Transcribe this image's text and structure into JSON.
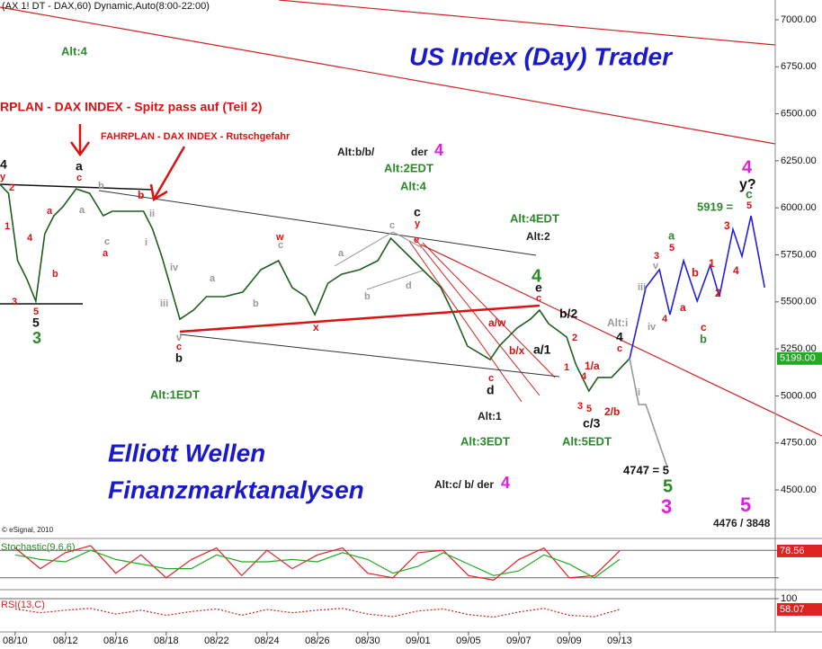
{
  "chart_data": [
    {
      "type": "line",
      "title": "(AX 1! DT - DAX,60) Dynamic,Auto(8:00-22:00)",
      "xlim": [
        -0.3,
        15.09
      ],
      "xticks": [
        {
          "value": 0,
          "label": "08/10"
        },
        {
          "value": 1,
          "label": "08/12"
        },
        {
          "value": 2,
          "label": "08/16"
        },
        {
          "value": 3,
          "label": "08/18"
        },
        {
          "value": 4,
          "label": "08/22"
        },
        {
          "value": 5,
          "label": "08/24"
        },
        {
          "value": 6,
          "label": "08/26"
        },
        {
          "value": 7,
          "label": "08/30"
        },
        {
          "value": 8,
          "label": "09/01"
        },
        {
          "value": 9,
          "label": "09/05"
        },
        {
          "value": 10,
          "label": "09/07"
        },
        {
          "value": 11,
          "label": "09/09"
        },
        {
          "value": 12,
          "label": "09/13"
        }
      ],
      "ylim": [
        4247,
        7105
      ],
      "yticks": [
        {
          "value": 4500,
          "label": "4500.00"
        },
        {
          "value": 4750,
          "label": "4750.00"
        },
        {
          "value": 5000,
          "label": "5000.00"
        },
        {
          "value": 5250,
          "label": "5250.00"
        },
        {
          "value": 5500,
          "label": "5500.00"
        },
        {
          "value": 5750,
          "label": "5750.00"
        },
        {
          "value": 6000,
          "label": "6000.00"
        },
        {
          "value": 6250,
          "label": "6250.00"
        },
        {
          "value": 6500,
          "label": "6500.00"
        },
        {
          "value": 6750,
          "label": "6750.00"
        },
        {
          "value": 7000,
          "label": "7000.00"
        }
      ],
      "tick_labels": true,
      "grid": false,
      "series": [
        {
          "color": "#1e5e1e",
          "line_style": "solid",
          "x": [
            -0.3,
            -0.13,
            0.05,
            0.23,
            0.41,
            0.59,
            0.77,
            0.95,
            1.21,
            1.48,
            1.75,
            1.93,
            2.2,
            2.55,
            2.73,
            2.91,
            3.09,
            3.27,
            3.54,
            3.8,
            4.16,
            4.52,
            4.88,
            5.23,
            5.5,
            5.77,
            5.95,
            6.21,
            6.48,
            6.84,
            7.2,
            7.46,
            7.73,
            8.09,
            8.45,
            8.71,
            8.98,
            9.43,
            9.61,
            9.96,
            10.23,
            10.41,
            10.59,
            10.95,
            11.13,
            11.39,
            11.57,
            11.84,
            12.2
          ],
          "values": [
            6125,
            6077,
            5719,
            5623,
            5504,
            5862,
            5958,
            6006,
            6101,
            6077,
            5958,
            5982,
            5982,
            5982,
            5886,
            5743,
            5576,
            5408,
            5456,
            5528,
            5528,
            5552,
            5671,
            5719,
            5576,
            5528,
            5432,
            5599,
            5647,
            5671,
            5719,
            5838,
            5767,
            5671,
            5576,
            5432,
            5265,
            5193,
            5265,
            5360,
            5408,
            5456,
            5384,
            5313,
            5169,
            5026,
            5098,
            5098,
            5199
          ]
        },
        {
          "color": "#2020e0",
          "line_style": "solid",
          "x": [
            12.2,
            12.52,
            12.79,
            13.0,
            13.27,
            13.54,
            13.8,
            13.98,
            14.25,
            14.43,
            14.61,
            14.88
          ],
          "values": [
            5199,
            5576,
            5671,
            5432,
            5719,
            5504,
            5695,
            5528,
            5886,
            5743,
            5958,
            5576
          ]
        },
        {
          "color": "#999999",
          "line_style": "solid",
          "x": [
            12.2,
            12.38,
            12.52,
            12.95
          ],
          "values": [
            5199,
            4954,
            4954,
            4620
          ]
        }
      ],
      "last_value": {
        "value": 5199,
        "label": "5199.00",
        "color": "#22aa22"
      }
    },
    {
      "type": "line",
      "title": "Stochastic(9,6,6)",
      "title_color": "#2a8a2a",
      "ylim": [
        0,
        100
      ],
      "yticks": [
        20,
        80
      ],
      "tick_labels": false,
      "grid": true,
      "series": [
        {
          "color": "#dd2222",
          "line_style": "solid",
          "x": [
            0,
            0.5,
            1,
            1.5,
            2,
            2.5,
            3,
            3.5,
            4,
            4.5,
            5,
            5.5,
            6,
            6.5,
            7,
            7.5,
            8,
            8.5,
            9,
            9.5,
            10,
            10.5,
            11,
            11.5,
            12
          ],
          "values": [
            85,
            40,
            75,
            90,
            30,
            70,
            20,
            60,
            85,
            25,
            80,
            40,
            70,
            85,
            30,
            20,
            75,
            80,
            25,
            15,
            60,
            85,
            20,
            25,
            78.56
          ]
        },
        {
          "color": "#22aa22",
          "line_style": "solid",
          "x": [
            0,
            0.5,
            1,
            1.5,
            2,
            2.5,
            3,
            3.5,
            4,
            4.5,
            5,
            5.5,
            6,
            6.5,
            7,
            7.5,
            8,
            8.5,
            9,
            9.5,
            10,
            10.5,
            11,
            11.5,
            12
          ],
          "values": [
            70,
            60,
            55,
            80,
            60,
            50,
            40,
            40,
            70,
            55,
            55,
            60,
            55,
            75,
            60,
            30,
            45,
            75,
            50,
            25,
            35,
            70,
            50,
            20,
            60
          ]
        }
      ],
      "last_value": {
        "value": 78.56,
        "label": "78.56",
        "color": "#dd2222"
      }
    },
    {
      "type": "line",
      "title": "RSI(13,C)",
      "title_color": "#dd2222",
      "ylim": [
        0,
        100
      ],
      "yticks": [
        100
      ],
      "tick_labels": true,
      "grid": true,
      "series": [
        {
          "color": "#cc2222",
          "line_style": "dotted",
          "x": [
            0,
            0.5,
            1,
            1.5,
            2,
            2.5,
            3,
            3.5,
            4,
            4.5,
            5,
            5.5,
            6,
            6.5,
            7,
            7.5,
            8,
            8.5,
            9,
            9.5,
            10,
            10.5,
            11,
            11.5,
            12
          ],
          "values": [
            60,
            45,
            55,
            62,
            40,
            55,
            35,
            50,
            60,
            35,
            58,
            45,
            55,
            62,
            40,
            30,
            52,
            60,
            38,
            28,
            48,
            62,
            35,
            30,
            58.07
          ]
        }
      ],
      "last_value": {
        "value": 58.07,
        "label": "58.07",
        "color": "#dd2222"
      }
    }
  ],
  "annotations": [
    {
      "text": "Alt:4",
      "color": "#2a8a2a"
    },
    {
      "text": "US Index (Day) Trader",
      "color": "#1a1acc"
    },
    {
      "text": "RPLAN - DAX INDEX - Spitz pass auf (Teil 2)",
      "color": "#dd1111"
    },
    {
      "text": "FAHRPLAN - DAX INDEX - Rutschgefahr",
      "color": "#dd1111"
    },
    {
      "text": "Alt:b/b/",
      "color": "#222222"
    },
    {
      "text": "der",
      "color": "#222222"
    },
    {
      "text": "4",
      "color": "#e020e0"
    },
    {
      "text": "Alt:2EDT",
      "color": "#2a8a2a"
    },
    {
      "text": "Alt:4",
      "color": "#2a8a2a"
    },
    {
      "text": "c",
      "color": "#111111"
    },
    {
      "text": "y",
      "color": "#dd1111"
    },
    {
      "text": "Alt:4EDT",
      "color": "#2a8a2a"
    },
    {
      "text": "Alt:2",
      "color": "#222222"
    },
    {
      "text": "4",
      "color": "#2a8a2a"
    },
    {
      "text": "e",
      "color": "#111111"
    },
    {
      "text": "c",
      "color": "#dd1111"
    },
    {
      "text": "b/2",
      "color": "#111111"
    },
    {
      "text": "a/1",
      "color": "#111111"
    },
    {
      "text": "Alt:i",
      "color": "#999999"
    },
    {
      "text": "4",
      "color": "#111111"
    },
    {
      "text": "c",
      "color": "#dd1111"
    },
    {
      "text": "1/a",
      "color": "#dd1111"
    },
    {
      "text": "2/b",
      "color": "#dd1111"
    },
    {
      "text": "c/3",
      "color": "#111111"
    },
    {
      "text": "Alt:1",
      "color": "#222222"
    },
    {
      "text": "Alt:3EDT",
      "color": "#2a8a2a"
    },
    {
      "text": "Alt:5EDT",
      "color": "#2a8a2a"
    },
    {
      "text": "d",
      "color": "#111111"
    },
    {
      "text": "c",
      "color": "#dd1111"
    },
    {
      "text": "a/w",
      "color": "#dd1111"
    },
    {
      "text": "b/x",
      "color": "#dd1111"
    },
    {
      "text": "Alt:1EDT",
      "color": "#2a8a2a"
    },
    {
      "text": "Elliott Wellen",
      "color": "#1a1acc"
    },
    {
      "text": "Finanzmarktanalysen",
      "color": "#1a1acc"
    },
    {
      "text": "Alt:c/ b/ der",
      "color": "#222222"
    },
    {
      "text": "4",
      "color": "#e020e0"
    },
    {
      "text": "4747 = 5",
      "color": "#111111"
    },
    {
      "text": "5",
      "color": "#2a8a2a"
    },
    {
      "text": "3",
      "color": "#e020e0"
    },
    {
      "text": "5",
      "color": "#e020e0"
    },
    {
      "text": "4476 / 3848",
      "color": "#222222"
    },
    {
      "text": "5919 =",
      "color": "#2a8a2a"
    },
    {
      "text": "4",
      "color": "#e020e0"
    },
    {
      "text": "y?",
      "color": "#111111"
    },
    {
      "text": "c",
      "color": "#2a8a2a"
    },
    {
      "text": "5",
      "color": "#dd1111"
    },
    {
      "text": "4",
      "color": "#111111"
    },
    {
      "text": "y",
      "color": "#dd1111"
    },
    {
      "text": "2",
      "color": "#dd1111"
    },
    {
      "text": "1",
      "color": "#dd1111"
    },
    {
      "text": "4",
      "color": "#dd1111"
    },
    {
      "text": "a",
      "color": "#dd1111"
    },
    {
      "text": "b",
      "color": "#dd1111"
    },
    {
      "text": "3",
      "color": "#dd1111"
    },
    {
      "text": "5",
      "color": "#dd1111"
    },
    {
      "text": "5",
      "color": "#111111"
    },
    {
      "text": "3",
      "color": "#2a8a2a"
    },
    {
      "text": "a",
      "color": "#111111"
    },
    {
      "text": "c",
      "color": "#dd1111"
    },
    {
      "text": "b",
      "color": "#999999"
    },
    {
      "text": "a",
      "color": "#999999"
    },
    {
      "text": "b",
      "color": "#dd1111"
    },
    {
      "text": "ii",
      "color": "#999999"
    },
    {
      "text": "c",
      "color": "#999999"
    },
    {
      "text": "a",
      "color": "#dd1111"
    },
    {
      "text": "i",
      "color": "#999999"
    },
    {
      "text": "iv",
      "color": "#999999"
    },
    {
      "text": "iii",
      "color": "#999999"
    },
    {
      "text": "v",
      "color": "#999999"
    },
    {
      "text": "c",
      "color": "#dd1111"
    },
    {
      "text": "b",
      "color": "#111111"
    },
    {
      "text": "a",
      "color": "#999999"
    },
    {
      "text": "b",
      "color": "#999999"
    },
    {
      "text": "w",
      "color": "#dd1111"
    },
    {
      "text": "c",
      "color": "#999999"
    },
    {
      "text": "x",
      "color": "#dd1111"
    },
    {
      "text": "a",
      "color": "#999999"
    },
    {
      "text": "b",
      "color": "#999999"
    },
    {
      "text": "c",
      "color": "#999999"
    },
    {
      "text": "e",
      "color": "#dd1111"
    },
    {
      "text": "d",
      "color": "#999999"
    },
    {
      "text": "1",
      "color": "#dd1111"
    },
    {
      "text": "2",
      "color": "#dd1111"
    },
    {
      "text": "4",
      "color": "#dd1111"
    },
    {
      "text": "3",
      "color": "#dd1111"
    },
    {
      "text": "5",
      "color": "#dd1111"
    },
    {
      "text": "iii",
      "color": "#999999"
    },
    {
      "text": "3",
      "color": "#dd1111"
    },
    {
      "text": "v",
      "color": "#999999"
    },
    {
      "text": "iv",
      "color": "#999999"
    },
    {
      "text": "4",
      "color": "#dd1111"
    },
    {
      "text": "a",
      "color": "#2a8a2a"
    },
    {
      "text": "5",
      "color": "#dd1111"
    },
    {
      "text": "a",
      "color": "#dd1111"
    },
    {
      "text": "b",
      "color": "#dd1111"
    },
    {
      "text": "c",
      "color": "#dd1111"
    },
    {
      "text": "b",
      "color": "#2a8a2a"
    },
    {
      "text": "1",
      "color": "#dd1111"
    },
    {
      "text": "2",
      "color": "#dd1111"
    },
    {
      "text": "3",
      "color": "#dd1111"
    },
    {
      "text": "4",
      "color": "#dd1111"
    },
    {
      "text": "ii",
      "color": "#999999"
    },
    {
      "text": "© eSignal, 2010",
      "color": "#222222"
    }
  ]
}
